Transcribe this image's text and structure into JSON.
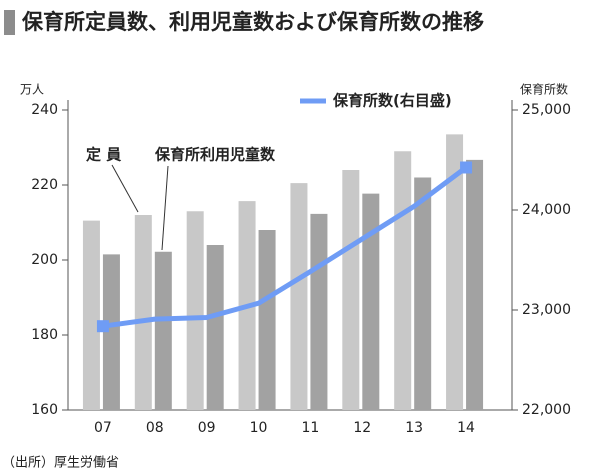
{
  "chart_data": {
    "type": "bar-line",
    "title": "保育所定員数、利用児童数および保育所数の推移",
    "y_label": "万人",
    "y2_label": "保育所数",
    "categories": [
      "07",
      "08",
      "09",
      "10",
      "11",
      "12",
      "13",
      "14"
    ],
    "series": [
      {
        "name": "定 員",
        "type": "bar",
        "color": "#c8c8c8",
        "values": [
          210.5,
          212,
          213,
          215.7,
          220.5,
          224,
          229,
          233.5
        ]
      },
      {
        "name": "保育所利用児童数",
        "type": "bar",
        "color": "#a2a2a2",
        "values": [
          201.5,
          202.2,
          204,
          208,
          212.3,
          217.7,
          222,
          226.7
        ]
      },
      {
        "name": "保育所数(右目盛)",
        "type": "line",
        "axis": "y2",
        "color": "#6f9cf5",
        "end_markers": true,
        "values": [
          22838,
          22909,
          22925,
          23068,
          23385,
          23711,
          24038,
          24425
        ]
      }
    ],
    "ylim": [
      160,
      240
    ],
    "yticks": [
      160,
      180,
      200,
      220,
      240
    ],
    "y2lim": [
      22000,
      25000
    ],
    "y2ticks": [
      {
        "value": 22000,
        "label": "22,000"
      },
      {
        "value": 23000,
        "label": "23,000"
      },
      {
        "value": 24000,
        "label": "24,000"
      },
      {
        "value": 25000,
        "label": "25,000"
      }
    ],
    "source": "（出所）厚生労働省"
  }
}
